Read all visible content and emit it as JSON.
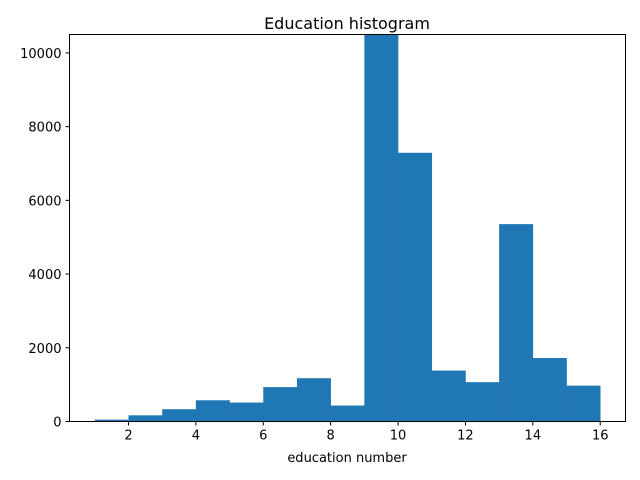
{
  "chart_data": {
    "type": "bar",
    "title": "Education histogram",
    "xlabel": "education number",
    "ylabel": "",
    "bin_edges": [
      1,
      2,
      3,
      4,
      5,
      6,
      7,
      8,
      9,
      10,
      11,
      12,
      13,
      14,
      15,
      16
    ],
    "values": [
      51,
      168,
      333,
      576,
      514,
      933,
      1175,
      433,
      10501,
      7291,
      1382,
      1067,
      5355,
      1723,
      973
    ],
    "xlim": [
      0.25,
      16.75
    ],
    "ylim": [
      0,
      10500
    ],
    "xticks": [
      2,
      4,
      6,
      8,
      10,
      12,
      14,
      16
    ],
    "yticks": [
      0,
      2000,
      4000,
      6000,
      8000,
      10000
    ],
    "bar_color": "#1f77b4",
    "grid": false
  }
}
